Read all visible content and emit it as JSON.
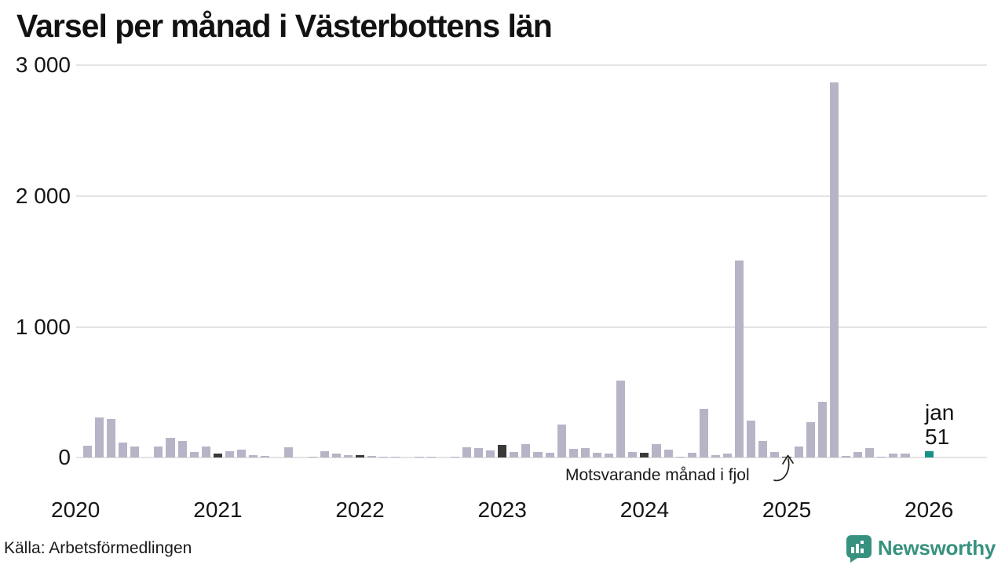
{
  "title": "Varsel per månad i Västerbottens län",
  "annotation": {
    "text": "Motsvarande månad i fjol",
    "arrow_icon": "curved-arrow-icon"
  },
  "last_point_label": {
    "month": "jan",
    "value": "51"
  },
  "source": "Källa: Arbetsförmedlingen",
  "branding": {
    "name": "Newsworthy",
    "icon": "speech-bubble-bar-chart-icon",
    "color": "#37917F"
  },
  "colors": {
    "bar_default": "#b7b4c7",
    "bar_past_january": "#3a3a3a",
    "bar_current": "#189287",
    "gridline": "#e4e4e4",
    "text": "#151515"
  },
  "chart_data": {
    "type": "bar",
    "title": "Varsel per månad i Västerbottens län",
    "xlabel": "",
    "ylabel": "",
    "ylim": [
      0,
      3000
    ],
    "grid": "horizontal",
    "legend": "none",
    "yticks": [
      {
        "label": "0",
        "value": 0
      },
      {
        "label": "1 000",
        "value": 1000
      },
      {
        "label": "2 000",
        "value": 2000
      },
      {
        "label": "3 000",
        "value": 3000
      }
    ],
    "year_labels": [
      "2020",
      "2021",
      "2022",
      "2023",
      "2024",
      "2025",
      "2026"
    ],
    "months": [
      {
        "month": "2020-01",
        "value": 0,
        "role": "past-january"
      },
      {
        "month": "2020-02",
        "value": 95
      },
      {
        "month": "2020-03",
        "value": 310
      },
      {
        "month": "2020-04",
        "value": 295
      },
      {
        "month": "2020-05",
        "value": 115
      },
      {
        "month": "2020-06",
        "value": 88
      },
      {
        "month": "2020-07",
        "value": 0
      },
      {
        "month": "2020-08",
        "value": 85
      },
      {
        "month": "2020-09",
        "value": 155
      },
      {
        "month": "2020-10",
        "value": 130
      },
      {
        "month": "2020-11",
        "value": 45
      },
      {
        "month": "2020-12",
        "value": 85
      },
      {
        "month": "2021-01",
        "value": 35,
        "role": "past-january"
      },
      {
        "month": "2021-02",
        "value": 50
      },
      {
        "month": "2021-03",
        "value": 60
      },
      {
        "month": "2021-04",
        "value": 20
      },
      {
        "month": "2021-05",
        "value": 12
      },
      {
        "month": "2021-06",
        "value": 0
      },
      {
        "month": "2021-07",
        "value": 80
      },
      {
        "month": "2021-08",
        "value": 0
      },
      {
        "month": "2021-09",
        "value": 6
      },
      {
        "month": "2021-10",
        "value": 50
      },
      {
        "month": "2021-11",
        "value": 30
      },
      {
        "month": "2021-12",
        "value": 18
      },
      {
        "month": "2022-01",
        "value": 20,
        "role": "past-january"
      },
      {
        "month": "2022-02",
        "value": 12
      },
      {
        "month": "2022-03",
        "value": 10
      },
      {
        "month": "2022-04",
        "value": 5
      },
      {
        "month": "2022-05",
        "value": 0
      },
      {
        "month": "2022-06",
        "value": 10
      },
      {
        "month": "2022-07",
        "value": 8
      },
      {
        "month": "2022-08",
        "value": 0
      },
      {
        "month": "2022-09",
        "value": 10
      },
      {
        "month": "2022-10",
        "value": 80
      },
      {
        "month": "2022-11",
        "value": 74
      },
      {
        "month": "2022-12",
        "value": 57
      },
      {
        "month": "2023-01",
        "value": 100,
        "role": "past-january"
      },
      {
        "month": "2023-02",
        "value": 44
      },
      {
        "month": "2023-03",
        "value": 104
      },
      {
        "month": "2023-04",
        "value": 44
      },
      {
        "month": "2023-05",
        "value": 36
      },
      {
        "month": "2023-06",
        "value": 255
      },
      {
        "month": "2023-07",
        "value": 70
      },
      {
        "month": "2023-08",
        "value": 76
      },
      {
        "month": "2023-09",
        "value": 36
      },
      {
        "month": "2023-10",
        "value": 34
      },
      {
        "month": "2023-11",
        "value": 590
      },
      {
        "month": "2023-12",
        "value": 44
      },
      {
        "month": "2024-01",
        "value": 36,
        "role": "past-january"
      },
      {
        "month": "2024-02",
        "value": 106
      },
      {
        "month": "2024-03",
        "value": 64
      },
      {
        "month": "2024-04",
        "value": 10
      },
      {
        "month": "2024-05",
        "value": 40
      },
      {
        "month": "2024-06",
        "value": 375
      },
      {
        "month": "2024-07",
        "value": 20
      },
      {
        "month": "2024-08",
        "value": 30
      },
      {
        "month": "2024-09",
        "value": 1510
      },
      {
        "month": "2024-10",
        "value": 285
      },
      {
        "month": "2024-11",
        "value": 130
      },
      {
        "month": "2024-12",
        "value": 46
      },
      {
        "month": "2025-01",
        "value": 10,
        "role": "past-january"
      },
      {
        "month": "2025-02",
        "value": 85
      },
      {
        "month": "2025-03",
        "value": 270
      },
      {
        "month": "2025-04",
        "value": 430
      },
      {
        "month": "2025-05",
        "value": 2870
      },
      {
        "month": "2025-06",
        "value": 16
      },
      {
        "month": "2025-07",
        "value": 44
      },
      {
        "month": "2025-08",
        "value": 76
      },
      {
        "month": "2025-09",
        "value": 10
      },
      {
        "month": "2025-10",
        "value": 30
      },
      {
        "month": "2025-11",
        "value": 30
      },
      {
        "month": "2025-12",
        "value": 0
      },
      {
        "month": "2026-01",
        "value": 51,
        "role": "current"
      }
    ]
  }
}
